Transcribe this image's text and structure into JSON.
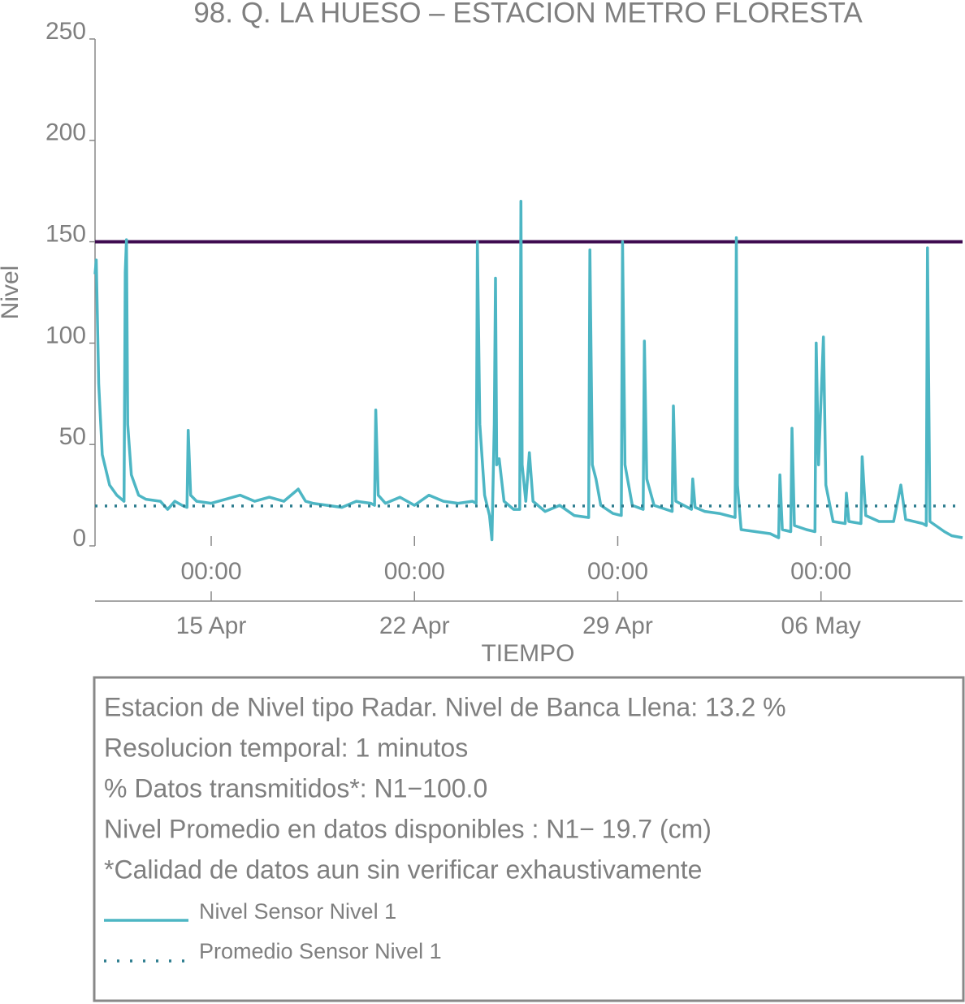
{
  "chart_data": {
    "type": "line",
    "title": "98. Q. LA HUESO – ESTACION METRO FLORESTA",
    "xlabel": "TIEMPO",
    "ylabel": "Nivel",
    "xlim": [
      "04-11 00:00",
      "05-10 21:00"
    ],
    "xticks": [
      {
        "value": "04-15 00:00",
        "label": "00:00"
      },
      {
        "value": "04-22 00:00",
        "label": "00:00"
      },
      {
        "value": "04-29 00:00",
        "label": "00:00"
      },
      {
        "value": "05-06 00:00",
        "label": "00:00"
      }
    ],
    "xticks_secondary": [
      {
        "value": "04-15 00:00",
        "label": "15 Apr"
      },
      {
        "value": "04-22 00:00",
        "label": "22 Apr"
      },
      {
        "value": "04-29 00:00",
        "label": "29 Apr"
      },
      {
        "value": "05-06 00:00",
        "label": "06 May"
      }
    ],
    "ylim": [
      0,
      250
    ],
    "yticks": [
      0,
      50,
      100,
      150,
      200,
      250
    ],
    "reference_line": {
      "value": 150,
      "color": "#3d0a4f"
    },
    "mean_line": {
      "name": "Promedio Sensor Nivel 1",
      "value": 19.7,
      "color": "#2e7d8f"
    },
    "x": [
      "04-11 00:00",
      "04-11 01:00",
      "04-11 03:00",
      "04-11 06:00",
      "04-11 12:00",
      "04-11 18:00",
      "04-12 00:00",
      "04-12 01:00",
      "04-12 02:00",
      "04-12 03:00",
      "04-12 06:00",
      "04-12 12:00",
      "04-12 18:00",
      "04-13 06:00",
      "04-13 12:00",
      "04-13 18:00",
      "04-14 00:00",
      "04-14 04:00",
      "04-14 05:00",
      "04-14 07:00",
      "04-14 12:00",
      "04-15 00:00",
      "04-15 12:00",
      "04-16 00:00",
      "04-16 12:00",
      "04-17 00:00",
      "04-17 12:00",
      "04-18 00:00",
      "04-18 06:00",
      "04-18 12:00",
      "04-19 00:00",
      "04-19 12:00",
      "04-20 00:00",
      "04-20 12:00",
      "04-20 15:00",
      "04-20 16:00",
      "04-20 18:00",
      "04-21 00:00",
      "04-21 12:00",
      "04-22 00:00",
      "04-22 12:00",
      "04-23 00:00",
      "04-23 12:00",
      "04-24 00:00",
      "04-24 03:00",
      "04-24 04:00",
      "04-24 06:00",
      "04-24 10:00",
      "04-24 14:00",
      "04-24 16:00",
      "04-24 18:00",
      "04-24 19:00",
      "04-24 20:00",
      "04-24 22:00",
      "04-25 02:00",
      "04-25 10:00",
      "04-25 15:00",
      "04-25 16:00",
      "04-25 17:00",
      "04-25 20:00",
      "04-25 23:00",
      "04-26 02:00",
      "04-26 12:00",
      "04-27 00:00",
      "04-27 12:00",
      "04-28 00:00",
      "04-28 01:00",
      "04-28 03:00",
      "04-28 06:00",
      "04-28 10:00",
      "04-28 20:00",
      "04-29 03:00",
      "04-29 04:00",
      "04-29 06:00",
      "04-29 12:00",
      "04-29 21:00",
      "04-29 22:00",
      "04-30 00:00",
      "04-30 06:00",
      "04-30 21:00",
      "04-30 22:00",
      "05-01 00:00",
      "05-01 13:00",
      "05-01 14:00",
      "05-01 16:00",
      "05-02 00:00",
      "05-02 12:00",
      "05-03 01:00",
      "05-03 02:00",
      "05-03 03:00",
      "05-03 06:00",
      "05-03 18:00",
      "05-04 06:00",
      "05-04 13:00",
      "05-04 14:00",
      "05-04 16:00",
      "05-04 23:00",
      "05-05 00:00",
      "05-05 02:00",
      "05-05 12:00",
      "05-05 19:00",
      "05-05 20:00",
      "05-05 22:00",
      "05-06 02:00",
      "05-06 04:00",
      "05-06 10:00",
      "05-06 20:00",
      "05-06 21:00",
      "05-06 23:00",
      "05-07 09:00",
      "05-07 10:00",
      "05-07 13:00",
      "05-08 00:00",
      "05-08 12:00",
      "05-08 18:00",
      "05-08 22:00",
      "05-09 12:00",
      "05-09 15:00",
      "05-09 16:00",
      "05-09 18:00",
      "05-10 06:00",
      "05-10 12:00",
      "05-10 21:00"
    ],
    "series": [
      {
        "name": "Nivel Sensor Nivel 1",
        "color": "#4db6c4",
        "values": [
          134,
          141,
          80,
          45,
          30,
          25,
          22,
          135,
          151,
          60,
          35,
          25,
          23,
          22,
          18,
          22,
          20,
          19,
          57,
          25,
          22,
          21,
          23,
          25,
          22,
          24,
          22,
          28,
          22,
          21,
          20,
          19,
          22,
          21,
          20,
          67,
          25,
          21,
          24,
          20,
          25,
          22,
          21,
          22,
          21,
          150,
          60,
          25,
          15,
          3,
          60,
          132,
          40,
          43,
          22,
          18,
          18,
          170,
          40,
          22,
          46,
          22,
          17,
          20,
          15,
          14,
          146,
          40,
          33,
          20,
          16,
          15,
          150,
          40,
          20,
          18,
          101,
          33,
          20,
          17,
          69,
          22,
          18,
          33,
          19,
          17,
          16,
          14,
          152,
          30,
          8,
          7,
          6,
          4,
          35,
          8,
          7,
          58,
          10,
          8,
          7,
          100,
          40,
          103,
          30,
          12,
          11,
          26,
          12,
          11,
          44,
          15,
          12,
          12,
          30,
          13,
          11,
          10,
          147,
          12,
          7,
          5,
          4
        ]
      }
    ],
    "info": [
      "Estacion de Nivel tipo Radar. Nivel de Banca Llena: 13.2 %",
      "Resolucion temporal: 1 minutos",
      "% Datos transmitidos*: N1−100.0",
      "Nivel Promedio en datos disponibles : N1− 19.7 (cm)",
      "*Calidad de datos aun sin verificar exhaustivamente"
    ]
  }
}
